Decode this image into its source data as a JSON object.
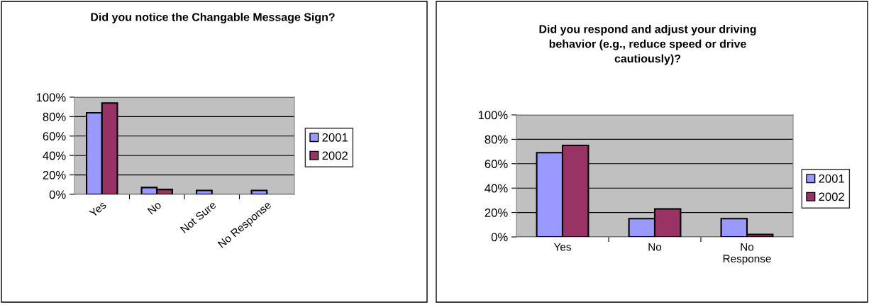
{
  "chart_data": [
    {
      "type": "bar",
      "title": "Did you notice the Changable Message Sign?",
      "categories": [
        "Yes",
        "No",
        "Not Sure",
        "No Response"
      ],
      "series": [
        {
          "name": "2001",
          "color": "#9999ff",
          "values": [
            84,
            7,
            4,
            4
          ]
        },
        {
          "name": "2002",
          "color": "#993366",
          "values": [
            94,
            5,
            null,
            null
          ]
        }
      ],
      "ylim": [
        0,
        100
      ],
      "yticks": [
        {
          "value": 0,
          "label": "0%"
        },
        {
          "value": 20,
          "label": "20%"
        },
        {
          "value": 40,
          "label": "40%"
        },
        {
          "value": 60,
          "label": "60%"
        },
        {
          "value": 80,
          "label": "80%"
        },
        {
          "value": 100,
          "label": "100%"
        }
      ],
      "grid": "y",
      "legend": "right"
    },
    {
      "type": "bar",
      "title": "Did you respond and adjust your driving behavior (e.g., reduce speed or drive cautiously)?",
      "categories": [
        "Yes",
        "No",
        "No\nResponse"
      ],
      "series": [
        {
          "name": "2001",
          "color": "#9999ff",
          "values": [
            69,
            15,
            15
          ]
        },
        {
          "name": "2002",
          "color": "#993366",
          "values": [
            75,
            23,
            2
          ]
        }
      ],
      "ylim": [
        0,
        100
      ],
      "yticks": [
        {
          "value": 0,
          "label": "0%"
        },
        {
          "value": 20,
          "label": "20%"
        },
        {
          "value": 40,
          "label": "40%"
        },
        {
          "value": 60,
          "label": "60%"
        },
        {
          "value": 80,
          "label": "80%"
        },
        {
          "value": 100,
          "label": "100%"
        }
      ],
      "grid": "y",
      "legend": "right"
    }
  ]
}
